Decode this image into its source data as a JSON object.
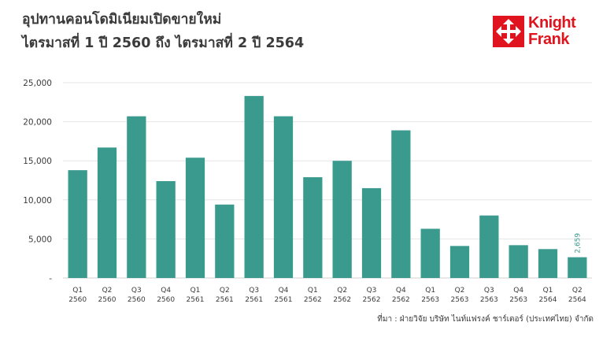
{
  "header": {
    "title_line1": "อุปทานคอนโดมิเนียมเปิดขายใหม่",
    "title_line2": "ไตรมาสที่ 1 ปี 2560 ถึง ไตรมาสที่ 2 ปี 2564"
  },
  "logo": {
    "line1": "Knight",
    "line2": "Frank",
    "brand_color": "#e0141e",
    "icon": "knight-frank-logo-icon"
  },
  "source": "ที่มา : ฝ่ายวิจัย บริษัท ไนท์แฟรงค์ ชาร์เตอร์ (ประเทศไทย) จำกัด",
  "chart_data": {
    "type": "bar",
    "title": "อุปทานคอนโดมิเนียมเปิดขายใหม่ ไตรมาสที่ 1 ปี 2560 ถึง ไตรมาสที่ 2 ปี 2564",
    "xlabel": "",
    "ylabel": "",
    "ylim": [
      0,
      25000
    ],
    "y_ticks": [
      0,
      5000,
      10000,
      15000,
      20000,
      25000
    ],
    "y_tick_labels": [
      "-",
      "5,000",
      "10,000",
      "15,000",
      "20,000",
      "25,000"
    ],
    "grid": true,
    "bar_color": "#3a9a8e",
    "categories": [
      [
        "Q1",
        "2560"
      ],
      [
        "Q2",
        "2560"
      ],
      [
        "Q3",
        "2560"
      ],
      [
        "Q4",
        "2560"
      ],
      [
        "Q1",
        "2561"
      ],
      [
        "Q2",
        "2561"
      ],
      [
        "Q3",
        "2561"
      ],
      [
        "Q4",
        "2561"
      ],
      [
        "Q1",
        "2562"
      ],
      [
        "Q2",
        "2562"
      ],
      [
        "Q3",
        "2562"
      ],
      [
        "Q4",
        "2562"
      ],
      [
        "Q1",
        "2563"
      ],
      [
        "Q2",
        "2563"
      ],
      [
        "Q3",
        "2563"
      ],
      [
        "Q4",
        "2563"
      ],
      [
        "Q1",
        "2564"
      ],
      [
        "Q2",
        "2564"
      ]
    ],
    "values": [
      13800,
      16700,
      20700,
      12400,
      15400,
      9400,
      23300,
      20700,
      12900,
      15000,
      11500,
      18900,
      6300,
      4100,
      8000,
      4200,
      3700,
      2659
    ],
    "data_labels": [
      {
        "index": 17,
        "text": "2,659"
      }
    ]
  }
}
